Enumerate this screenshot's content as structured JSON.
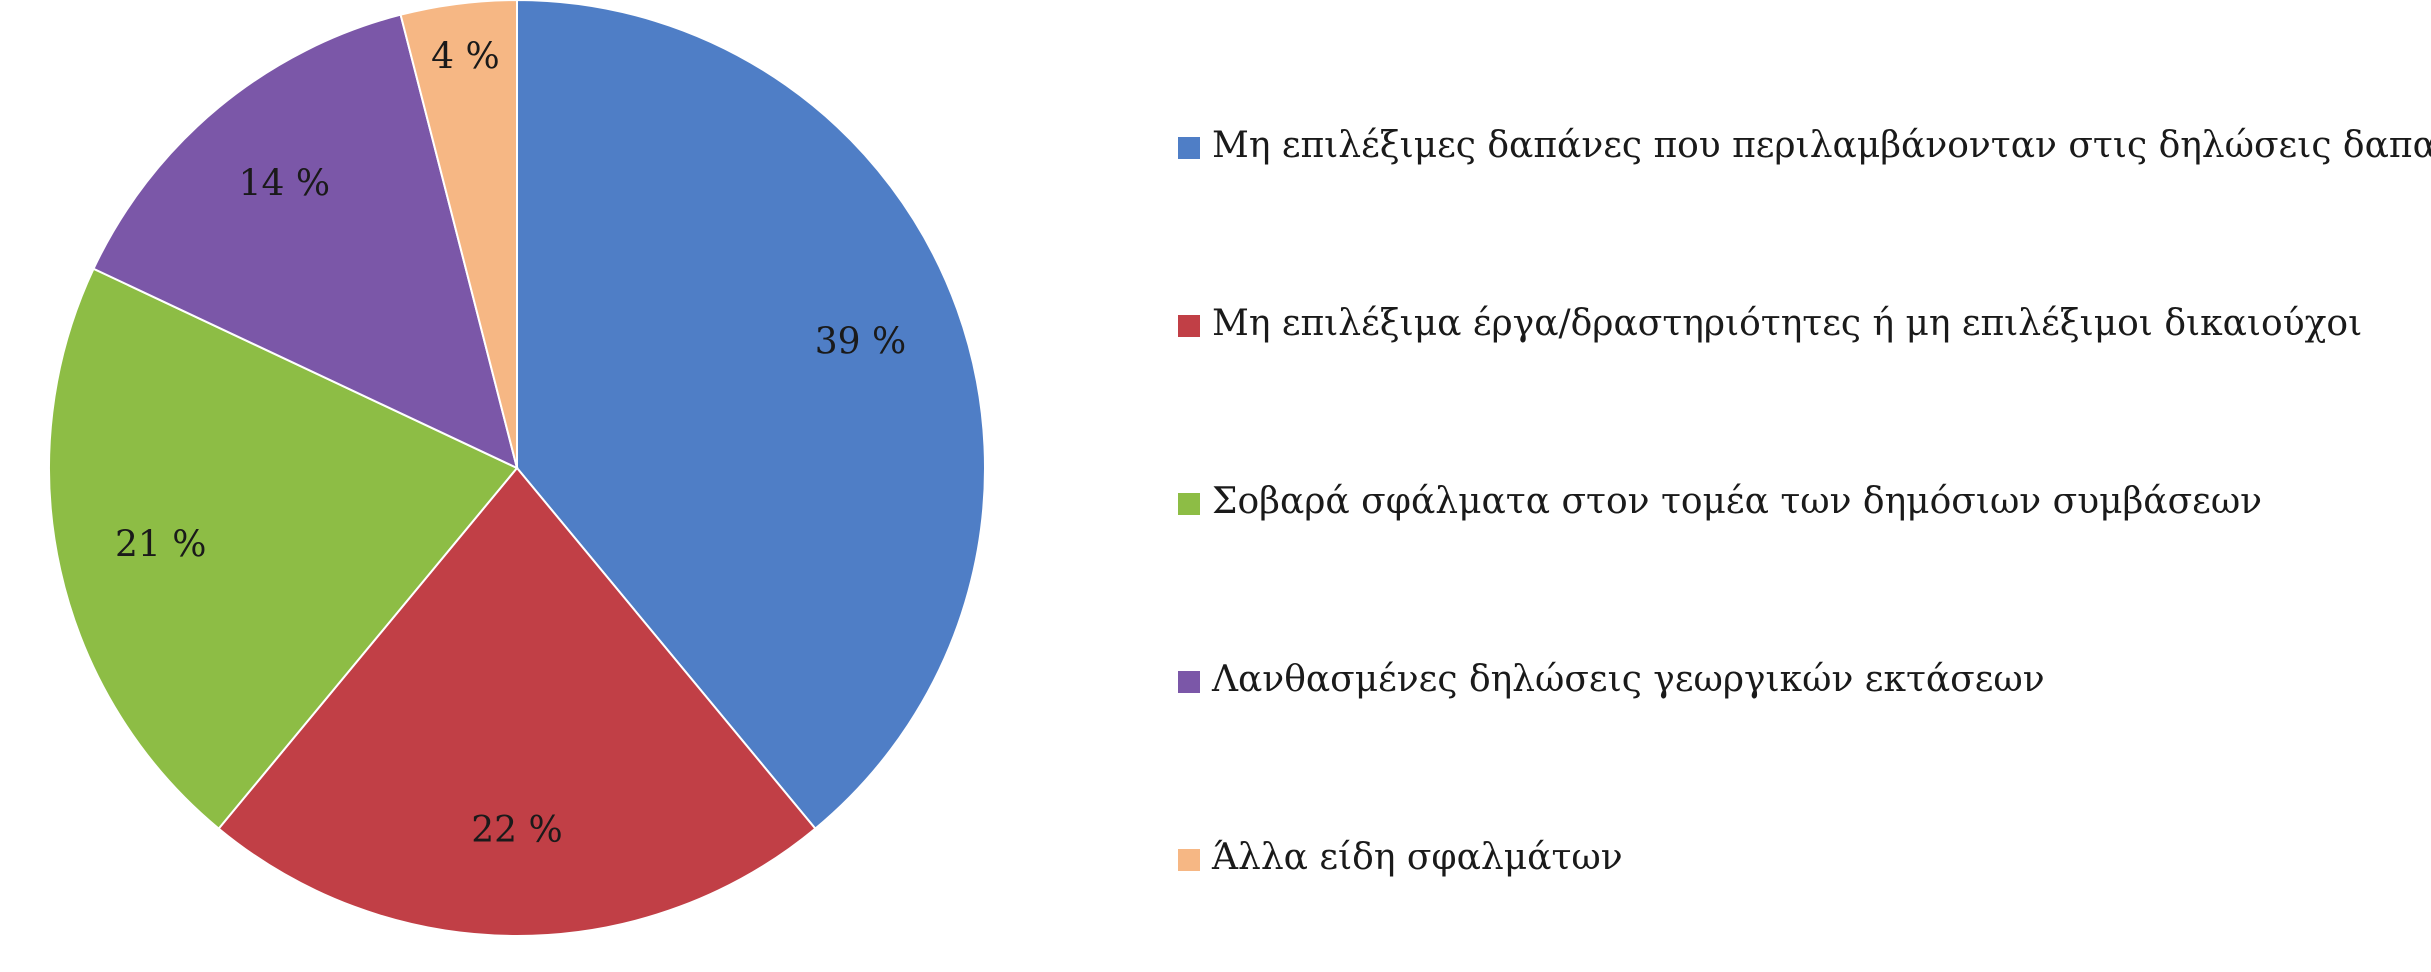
{
  "chart_data": {
    "type": "pie",
    "title": "",
    "start_angle_deg": 0,
    "direction": "clockwise",
    "legend_position": "right",
    "slices": [
      {
        "label": "Μη επιλέξιμες δαπάνες που περιλαμβάνονταν στις δηλώσεις δαπανών",
        "value": 39,
        "value_label": "39 %",
        "color": "#4f7ec6"
      },
      {
        "label": "Μη επιλέξιμα έργα/δραστηριότητες ή μη επιλέξιμοι δικαιούχοι",
        "value": 22,
        "value_label": "22 %",
        "color": "#c13f46"
      },
      {
        "label": "Σοβαρά σφάλματα στον τομέα των δημόσιων συμβάσεων",
        "value": 21,
        "value_label": "21 %",
        "color": "#8dbd45"
      },
      {
        "label": "Λανθασμένες δηλώσεις γεωργικών εκτάσεων",
        "value": 14,
        "value_label": "14 %",
        "color": "#7b57a8"
      },
      {
        "label": "Άλλα είδη σφαλμάτων",
        "value": 4,
        "value_label": "4 %",
        "color": "#f6b784"
      }
    ]
  }
}
